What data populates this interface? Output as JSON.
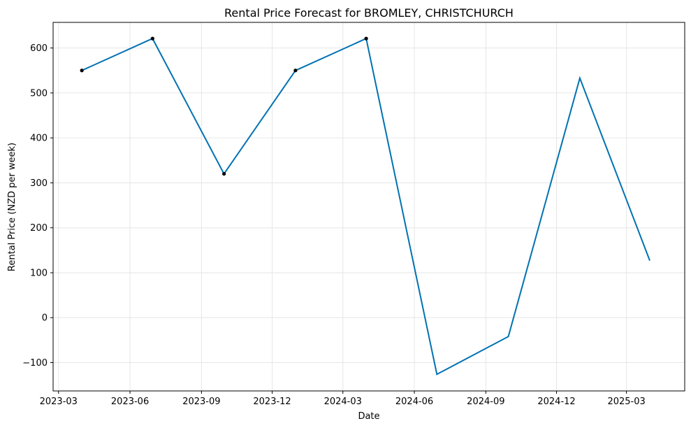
{
  "chart_data": {
    "type": "line",
    "title": "Rental Price Forecast for BROMLEY, CHRISTCHURCH",
    "xlabel": "Date",
    "ylabel": "Rental Price (NZD per week)",
    "x_axis_type": "date",
    "xlim": [
      "2023-02-22",
      "2025-05-15"
    ],
    "ylim": [
      -163,
      657
    ],
    "grid": true,
    "x_ticks": [
      {
        "date": "2023-03-01",
        "label": "2023-03"
      },
      {
        "date": "2023-06-01",
        "label": "2023-06"
      },
      {
        "date": "2023-09-01",
        "label": "2023-09"
      },
      {
        "date": "2023-12-01",
        "label": "2023-12"
      },
      {
        "date": "2024-03-01",
        "label": "2024-03"
      },
      {
        "date": "2024-06-01",
        "label": "2024-06"
      },
      {
        "date": "2024-09-01",
        "label": "2024-09"
      },
      {
        "date": "2024-12-01",
        "label": "2024-12"
      },
      {
        "date": "2025-03-01",
        "label": "2025-03"
      }
    ],
    "y_ticks": [
      {
        "value": -100,
        "label": "−100"
      },
      {
        "value": 0,
        "label": "0"
      },
      {
        "value": 100,
        "label": "100"
      },
      {
        "value": 200,
        "label": "200"
      },
      {
        "value": 300,
        "label": "300"
      },
      {
        "value": 400,
        "label": "400"
      },
      {
        "value": 500,
        "label": "500"
      },
      {
        "value": 600,
        "label": "600"
      }
    ],
    "series": [
      {
        "kind": "line",
        "color": "#0072b2",
        "x": [
          "2023-03-31",
          "2023-06-30",
          "2023-09-30",
          "2023-12-31",
          "2024-03-31",
          "2024-06-30",
          "2024-09-30",
          "2024-12-31",
          "2025-03-31"
        ],
        "y": [
          550,
          621,
          320,
          550,
          621,
          -126,
          -42,
          533,
          127
        ]
      },
      {
        "kind": "scatter",
        "color": "#000000",
        "x": [
          "2023-03-31",
          "2023-06-30",
          "2023-09-30",
          "2023-12-31",
          "2024-03-31"
        ],
        "y": [
          550,
          621,
          320,
          550,
          621
        ]
      }
    ]
  }
}
